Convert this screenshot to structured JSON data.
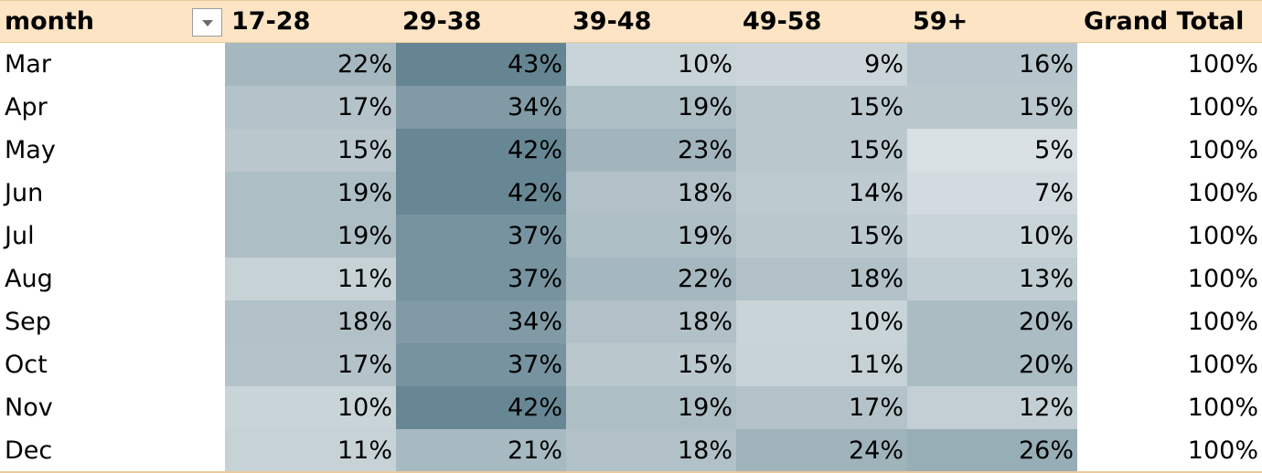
{
  "header": {
    "month_label": "month",
    "columns": [
      "17-28",
      "29-38",
      "39-48",
      "49-58",
      "59+"
    ],
    "grand_total_label": "Grand Total",
    "filter_icon": "dropdown-arrow-icon"
  },
  "rows": [
    {
      "month": "Mar",
      "values": [
        "22%",
        "43%",
        "10%",
        "9%",
        "16%"
      ],
      "total": "100%"
    },
    {
      "month": "Apr",
      "values": [
        "17%",
        "34%",
        "19%",
        "15%",
        "15%"
      ],
      "total": "100%"
    },
    {
      "month": "May",
      "values": [
        "15%",
        "42%",
        "23%",
        "15%",
        "5%"
      ],
      "total": "100%"
    },
    {
      "month": "Jun",
      "values": [
        "19%",
        "42%",
        "18%",
        "14%",
        "7%"
      ],
      "total": "100%"
    },
    {
      "month": "Jul",
      "values": [
        "19%",
        "37%",
        "19%",
        "15%",
        "10%"
      ],
      "total": "100%"
    },
    {
      "month": "Aug",
      "values": [
        "11%",
        "37%",
        "22%",
        "18%",
        "13%"
      ],
      "total": "100%"
    },
    {
      "month": "Sep",
      "values": [
        "18%",
        "34%",
        "18%",
        "10%",
        "20%"
      ],
      "total": "100%"
    },
    {
      "month": "Oct",
      "values": [
        "17%",
        "37%",
        "15%",
        "11%",
        "20%"
      ],
      "total": "100%"
    },
    {
      "month": "Nov",
      "values": [
        "10%",
        "42%",
        "19%",
        "17%",
        "12%"
      ],
      "total": "100%"
    },
    {
      "month": "Dec",
      "values": [
        "11%",
        "21%",
        "18%",
        "24%",
        "26%"
      ],
      "total": "100%"
    }
  ],
  "colors": {
    "header_bg": "#fce4c4",
    "scale_low": "#d8e0e3",
    "scale_high": "#658592"
  }
}
